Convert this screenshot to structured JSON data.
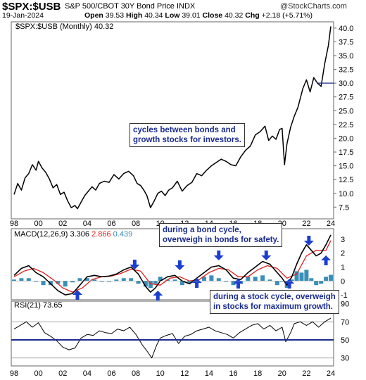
{
  "header": {
    "symbol": "$SPX:$USB",
    "description": "S&P 500/CBOT 30Y Bond Price INDX",
    "watermark": "@StockCharts.com",
    "date": "19-Jan-2024",
    "open_label": "Open",
    "open": "39.53",
    "high_label": "High",
    "high": "40.34",
    "low_label": "Low",
    "low": "39.01",
    "close_label": "Close",
    "close": "40.32",
    "chg_label": "Chg",
    "chg": "+2.18 (+5.71%)"
  },
  "colors": {
    "price": "#000000",
    "macd": "#000000",
    "signal": "#e02020",
    "histogram": "#3a8fb7",
    "arrow": "#1a3fd0",
    "rsi_centerline": "#1a2c8f",
    "annotation_text": "#1a2c8f"
  },
  "panels": {
    "price_legend": "$SPX:$USB (Monthly) 40.32",
    "macd_legend_prefix": "MACD(12,26,9)",
    "macd_value": "3.306",
    "signal_value": "2.866",
    "hist_value": "0.439",
    "rsi_legend_prefix": "RSI(21)",
    "rsi_value": "73.65"
  },
  "annotations": {
    "top": [
      "cycles between bonds and",
      "growth stocks for investors."
    ],
    "bond": [
      "during a bond cycle,",
      "overweigh in bonds for safety."
    ],
    "stock": [
      "during a stock cycle, overweigh",
      "in stocks for maximum growth."
    ]
  },
  "chart_data": [
    {
      "type": "line",
      "title": "$SPX:$USB (Monthly) 40.32",
      "x_tick_labels": [
        "98",
        "00",
        "02",
        "04",
        "06",
        "08",
        "10",
        "12",
        "14",
        "16",
        "18",
        "20",
        "22",
        "24"
      ],
      "y_ticks": [
        7.5,
        10.0,
        12.5,
        15.0,
        17.5,
        20.0,
        22.5,
        25.0,
        27.5,
        30.0,
        32.5,
        35.0,
        37.5,
        40.0
      ],
      "ylim": [
        5.5,
        41.0
      ],
      "grid": false,
      "annotated_level": 30.0,
      "series": [
        {
          "x": [
            1998.0,
            1998.3,
            1998.6,
            1998.9,
            1999.2,
            1999.5,
            1999.8,
            2000.0,
            2000.3,
            2000.6,
            2000.9,
            2001.2,
            2001.5,
            2001.8,
            2002.1,
            2002.4,
            2002.7,
            2003.0,
            2003.2,
            2003.5,
            2003.8,
            2004.1,
            2004.4,
            2004.7,
            2005.0,
            2005.4,
            2005.8,
            2006.2,
            2006.6,
            2007.0,
            2007.4,
            2007.8,
            2008.1,
            2008.4,
            2008.7,
            2008.9,
            2009.2,
            2009.5,
            2009.8,
            2010.1,
            2010.4,
            2010.7,
            2011.0,
            2011.4,
            2011.8,
            2012.2,
            2012.6,
            2013.0,
            2013.4,
            2013.8,
            2014.2,
            2014.6,
            2015.0,
            2015.4,
            2015.8,
            2016.2,
            2016.6,
            2017.0,
            2017.4,
            2017.8,
            2018.2,
            2018.6,
            2018.9,
            2019.2,
            2019.5,
            2019.8,
            2020.0,
            2020.2,
            2020.4,
            2020.7,
            2021.0,
            2021.3,
            2021.7,
            2022.0,
            2022.3,
            2022.6,
            2022.9,
            2023.2,
            2023.5,
            2023.8,
            2024.0
          ],
          "y": [
            9.8,
            11.8,
            10.6,
            12.8,
            13.6,
            15.2,
            14.2,
            15.8,
            14.6,
            13.8,
            12.6,
            11.0,
            11.6,
            9.8,
            10.2,
            8.6,
            7.4,
            7.8,
            7.2,
            8.4,
            9.6,
            10.4,
            11.2,
            10.6,
            11.8,
            12.2,
            12.0,
            13.4,
            12.6,
            13.6,
            14.0,
            13.2,
            11.8,
            11.4,
            10.4,
            9.6,
            7.4,
            8.6,
            10.0,
            10.4,
            9.6,
            10.6,
            11.0,
            12.2,
            10.4,
            11.4,
            12.0,
            13.6,
            13.2,
            14.2,
            15.0,
            15.6,
            16.2,
            15.8,
            15.2,
            15.0,
            16.6,
            17.8,
            18.6,
            20.6,
            21.2,
            22.2,
            19.6,
            20.4,
            19.8,
            21.6,
            21.8,
            15.2,
            19.0,
            22.0,
            24.0,
            25.6,
            29.0,
            30.6,
            28.4,
            31.0,
            30.0,
            29.4,
            33.5,
            36.8,
            40.3
          ]
        }
      ]
    },
    {
      "type": "line",
      "title": "MACD(12,26,9)",
      "x_tick_labels": [
        "98",
        "00",
        "02",
        "04",
        "06",
        "08",
        "10",
        "12",
        "14",
        "16",
        "18",
        "20",
        "22",
        "24"
      ],
      "y_ticks": [
        -1,
        0,
        1,
        2,
        3
      ],
      "ylim": [
        -1.3,
        3.7
      ],
      "series": [
        {
          "name": "MACD",
          "x": [
            1998.0,
            1998.6,
            1999.2,
            1999.8,
            2000.4,
            2001.0,
            2001.6,
            2002.2,
            2002.8,
            2003.4,
            2004.0,
            2004.6,
            2005.2,
            2005.8,
            2006.4,
            2007.0,
            2007.6,
            2008.2,
            2008.8,
            2009.2,
            2009.6,
            2010.0,
            2010.6,
            2011.2,
            2011.8,
            2012.4,
            2013.0,
            2013.6,
            2014.2,
            2014.8,
            2015.4,
            2016.0,
            2016.6,
            2017.2,
            2017.8,
            2018.4,
            2019.0,
            2019.6,
            2020.0,
            2020.4,
            2020.8,
            2021.2,
            2021.6,
            2022.0,
            2022.4,
            2022.8,
            2023.2,
            2023.6,
            2024.0
          ],
          "y": [
            0.4,
            0.9,
            1.1,
            0.6,
            0.3,
            -0.2,
            -0.7,
            -1.0,
            -0.9,
            -0.3,
            0.3,
            0.4,
            0.3,
            0.35,
            0.5,
            0.8,
            1.0,
            0.5,
            -0.4,
            -0.8,
            -0.5,
            0.0,
            0.3,
            0.4,
            0.0,
            -0.2,
            0.2,
            0.6,
            1.0,
            1.1,
            0.8,
            0.2,
            0.1,
            0.6,
            1.0,
            1.4,
            1.2,
            0.6,
            0.2,
            -0.3,
            0.3,
            1.2,
            2.0,
            2.6,
            2.2,
            1.8,
            2.0,
            2.6,
            3.3
          ]
        },
        {
          "name": "Signal",
          "x": [
            1998.0,
            1998.8,
            1999.6,
            2000.4,
            2001.2,
            2002.0,
            2002.8,
            2003.6,
            2004.4,
            2005.2,
            2006.0,
            2006.8,
            2007.6,
            2008.4,
            2009.2,
            2010.0,
            2010.8,
            2011.6,
            2012.4,
            2013.2,
            2014.0,
            2014.8,
            2015.6,
            2016.4,
            2017.2,
            2018.0,
            2018.8,
            2019.6,
            2020.4,
            2021.2,
            2022.0,
            2022.8,
            2023.6,
            2024.0
          ],
          "y": [
            0.3,
            0.7,
            0.9,
            0.6,
            0.1,
            -0.5,
            -0.8,
            -0.5,
            0.1,
            0.3,
            0.35,
            0.55,
            0.85,
            0.7,
            -0.2,
            -0.3,
            0.2,
            0.3,
            0.0,
            0.1,
            0.6,
            0.9,
            0.8,
            0.3,
            0.3,
            0.8,
            1.1,
            0.9,
            0.2,
            0.5,
            1.8,
            2.2,
            2.2,
            2.9
          ]
        },
        {
          "name": "Histogram",
          "x": [
            1998.0,
            1998.6,
            1999.2,
            1999.8,
            2000.4,
            2001.0,
            2001.6,
            2002.2,
            2002.8,
            2003.4,
            2004.0,
            2004.6,
            2005.2,
            2005.8,
            2006.4,
            2007.0,
            2007.6,
            2008.2,
            2008.8,
            2009.2,
            2009.6,
            2010.0,
            2010.6,
            2011.2,
            2011.8,
            2012.4,
            2013.0,
            2013.6,
            2014.2,
            2014.8,
            2015.4,
            2016.0,
            2016.6,
            2017.2,
            2017.8,
            2018.4,
            2019.0,
            2019.6,
            2020.0,
            2020.4,
            2020.8,
            2021.2,
            2021.6,
            2022.0,
            2022.4,
            2022.8,
            2023.2,
            2023.6,
            2024.0
          ],
          "y": [
            0.1,
            0.2,
            0.2,
            0.0,
            -0.3,
            -0.3,
            -0.2,
            -0.4,
            -0.1,
            0.2,
            0.2,
            0.1,
            0.0,
            0.0,
            0.1,
            0.2,
            0.2,
            -0.2,
            -0.4,
            -0.5,
            -0.2,
            0.3,
            0.1,
            0.1,
            -0.3,
            -0.2,
            0.1,
            0.3,
            0.4,
            0.2,
            0.0,
            -0.3,
            -0.2,
            0.3,
            0.3,
            0.4,
            0.1,
            -0.3,
            0.0,
            -0.5,
            0.1,
            0.7,
            0.6,
            0.8,
            0.2,
            -0.3,
            -0.2,
            0.3,
            0.44
          ]
        }
      ],
      "arrows_up_x": [
        2003.2,
        2009.8,
        2013.0,
        2016.4,
        2020.6,
        2023.6
      ],
      "arrows_down_x": [
        2007.9,
        2011.6,
        2014.8,
        2018.7,
        2022.2
      ]
    },
    {
      "type": "line",
      "title": "RSI(21)",
      "x_tick_labels": [
        "98",
        "00",
        "02",
        "04",
        "06",
        "08",
        "10",
        "12",
        "14",
        "16",
        "18",
        "20",
        "22",
        "24"
      ],
      "y_ticks": [
        30,
        50,
        70,
        90
      ],
      "ylim": [
        22,
        92
      ],
      "reference_line": 50,
      "series": [
        {
          "name": "RSI",
          "x": [
            1998.0,
            1998.5,
            1999.0,
            1999.5,
            2000.0,
            2000.5,
            2001.0,
            2001.5,
            2002.0,
            2002.5,
            2003.0,
            2003.5,
            2004.0,
            2004.5,
            2005.0,
            2005.5,
            2006.0,
            2006.5,
            2007.0,
            2007.5,
            2008.0,
            2008.5,
            2009.0,
            2009.3,
            2009.7,
            2010.0,
            2010.5,
            2011.0,
            2011.5,
            2012.0,
            2012.5,
            2013.0,
            2013.5,
            2014.0,
            2014.5,
            2015.0,
            2015.5,
            2016.0,
            2016.5,
            2017.0,
            2017.5,
            2018.0,
            2018.5,
            2019.0,
            2019.5,
            2020.0,
            2020.3,
            2020.7,
            2021.0,
            2021.5,
            2022.0,
            2022.5,
            2023.0,
            2023.5,
            2024.0
          ],
          "y": [
            62,
            66,
            70,
            64,
            69,
            58,
            54,
            49,
            42,
            39,
            41,
            52,
            56,
            55,
            60,
            58,
            57,
            62,
            60,
            64,
            56,
            45,
            36,
            30,
            44,
            52,
            55,
            57,
            46,
            54,
            56,
            60,
            62,
            64,
            60,
            58,
            56,
            52,
            58,
            62,
            66,
            68,
            62,
            66,
            60,
            64,
            48,
            58,
            68,
            70,
            66,
            70,
            64,
            70,
            74
          ]
        }
      ]
    }
  ]
}
